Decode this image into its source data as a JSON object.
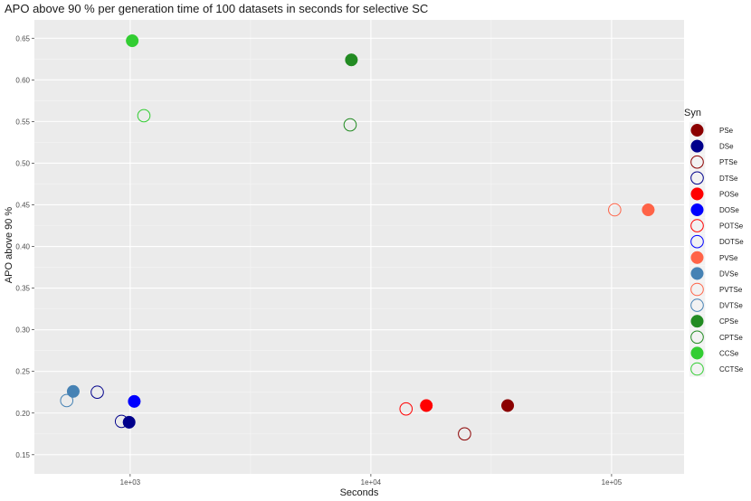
{
  "chart_data": {
    "type": "scatter",
    "title": "APO above 90 % per generation time of 100 datasets in seconds for selective SC",
    "xlabel": "Seconds",
    "ylabel": "APO above 90 %",
    "x_scale": "log10",
    "xlim": [
      400,
      200000
    ],
    "ylim": [
      0.127,
      0.672
    ],
    "x_ticks": [
      1000,
      10000,
      100000
    ],
    "x_tick_labels": [
      "1e+03",
      "1e+04",
      "1e+05"
    ],
    "y_ticks": [
      0.15,
      0.2,
      0.25,
      0.3,
      0.35,
      0.4,
      0.45,
      0.5,
      0.55,
      0.6,
      0.65
    ],
    "y_tick_labels": [
      "0.15",
      "0.20",
      "0.25",
      "0.30",
      "0.35",
      "0.40",
      "0.45",
      "0.50",
      "0.55",
      "0.60",
      "0.65"
    ],
    "grid": true,
    "legend_title": "Syn",
    "legend_position": "right",
    "series": [
      {
        "name": "PSe",
        "color": "#8B0000",
        "filled": true,
        "points": [
          {
            "x": 37000,
            "y": 0.209
          }
        ]
      },
      {
        "name": "DSe",
        "color": "#00008B",
        "filled": true,
        "points": [
          {
            "x": 990,
            "y": 0.189
          }
        ]
      },
      {
        "name": "PTSe",
        "color": "#8B0000",
        "filled": false,
        "points": [
          {
            "x": 24500,
            "y": 0.175
          }
        ]
      },
      {
        "name": "DTSe",
        "color": "#00008B",
        "filled": false,
        "points": [
          {
            "x": 730,
            "y": 0.225
          },
          {
            "x": 920,
            "y": 0.19
          }
        ]
      },
      {
        "name": "POSe",
        "color": "#FF0000",
        "filled": true,
        "points": [
          {
            "x": 17000,
            "y": 0.209
          }
        ]
      },
      {
        "name": "DOSe",
        "color": "#0000FF",
        "filled": true,
        "points": [
          {
            "x": 1040,
            "y": 0.214
          }
        ]
      },
      {
        "name": "POTSe",
        "color": "#FF0000",
        "filled": false,
        "points": [
          {
            "x": 14000,
            "y": 0.205
          }
        ]
      },
      {
        "name": "DOTSe",
        "color": "#0000FF",
        "filled": false,
        "points": []
      },
      {
        "name": "PVSe",
        "color": "#FF6347",
        "filled": true,
        "points": [
          {
            "x": 142000,
            "y": 0.444
          }
        ]
      },
      {
        "name": "DVSe",
        "color": "#4682B4",
        "filled": true,
        "points": [
          {
            "x": 580,
            "y": 0.226
          }
        ]
      },
      {
        "name": "PVTSe",
        "color": "#FF6347",
        "filled": false,
        "points": [
          {
            "x": 103000,
            "y": 0.444
          }
        ]
      },
      {
        "name": "DVTSe",
        "color": "#4682B4",
        "filled": false,
        "points": [
          {
            "x": 545,
            "y": 0.215
          }
        ]
      },
      {
        "name": "CPSe",
        "color": "#228B22",
        "filled": true,
        "points": [
          {
            "x": 8300,
            "y": 0.624
          }
        ]
      },
      {
        "name": "CPTSe",
        "color": "#228B22",
        "filled": false,
        "points": [
          {
            "x": 8200,
            "y": 0.546
          }
        ]
      },
      {
        "name": "CCSe",
        "color": "#32CD32",
        "filled": true,
        "points": [
          {
            "x": 1020,
            "y": 0.647
          }
        ]
      },
      {
        "name": "CCTSe",
        "color": "#32CD32",
        "filled": false,
        "points": [
          {
            "x": 1140,
            "y": 0.557
          }
        ]
      }
    ]
  }
}
